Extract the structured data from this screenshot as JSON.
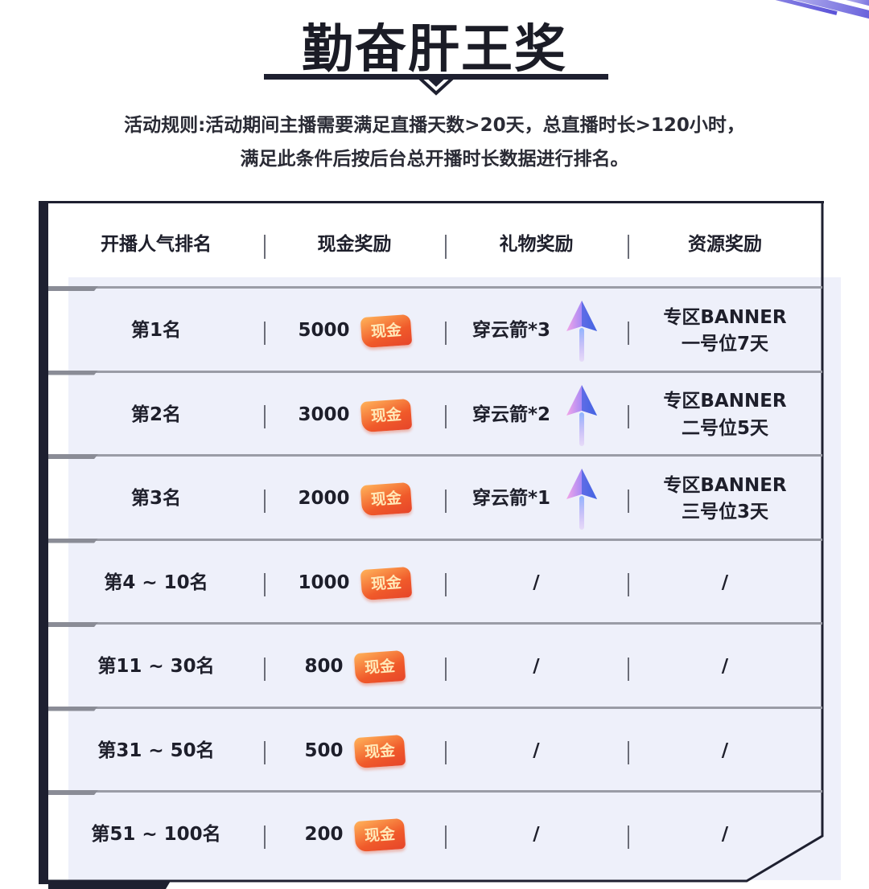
{
  "title": "勤奋肝王奖",
  "rules": [
    "活动规则:活动期间主播需要满足直播天数>20天，总直播时长>120小时，",
    "满足此条件后按后台总开播时长数据进行排名。"
  ],
  "headers": [
    "开播人气排名",
    "现金奖励",
    "礼物奖励",
    "资源奖励"
  ],
  "cash_badge": "现金",
  "accent": "#5a52d8",
  "rows": [
    {
      "rank": "第1名",
      "cash": "5000",
      "gift": "穿云箭*3",
      "gift_icon": "arrow-gem-icon",
      "res1": "专区BANNER",
      "res2": "一号位7天"
    },
    {
      "rank": "第2名",
      "cash": "3000",
      "gift": "穿云箭*2",
      "gift_icon": "arrow-gem-icon",
      "res1": "专区BANNER",
      "res2": "二号位5天"
    },
    {
      "rank": "第3名",
      "cash": "2000",
      "gift": "穿云箭*1",
      "gift_icon": "arrow-gem-icon",
      "res1": "专区BANNER",
      "res2": "三号位3天"
    },
    {
      "rank": "第4 ~ 10名",
      "cash": "1000",
      "gift": "/",
      "res1": "/",
      "res2": ""
    },
    {
      "rank": "第11 ~ 30名",
      "cash": "800",
      "gift": "/",
      "res1": "/",
      "res2": ""
    },
    {
      "rank": "第31 ~ 50名",
      "cash": "500",
      "gift": "/",
      "res1": "/",
      "res2": ""
    },
    {
      "rank": "第51 ~ 100名",
      "cash": "200",
      "gift": "/",
      "res1": "/",
      "res2": ""
    }
  ]
}
